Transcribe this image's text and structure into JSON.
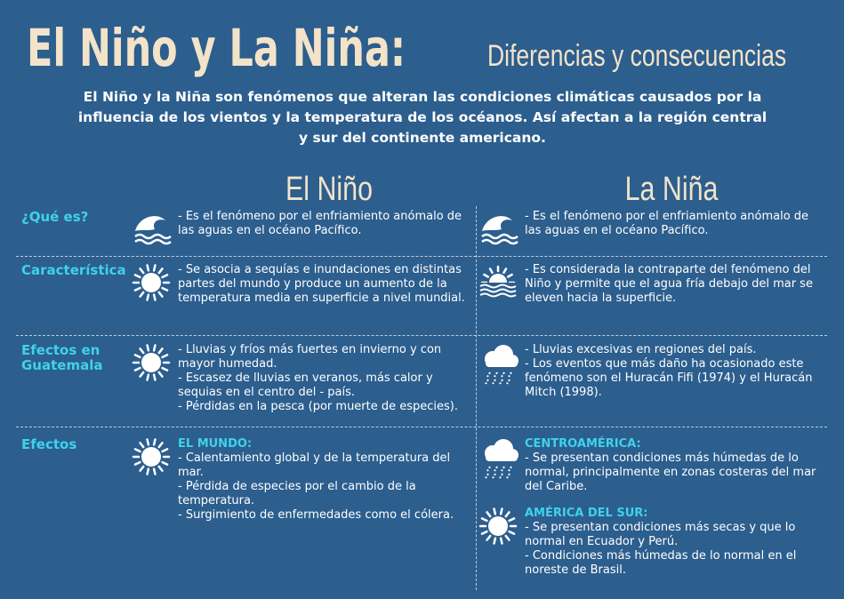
{
  "header": {
    "title": "El Niño y La Niña:",
    "subtitle": "Diferencias y consecuencias",
    "intro": "El Niño y la Niña son fenómenos que alteran las condiciones climáticas causados por la influencia de los vientos y la temperatura de los océanos. Así afectan a la región central y sur del continente americano."
  },
  "columns": [
    "El Niño",
    "La Niña"
  ],
  "rows": [
    {
      "label": "¿Qué es?",
      "cells": [
        [
          {
            "items": [
              "- Es el fenómeno por el enfriamiento anómalo de las aguas en el océano Pacífico."
            ]
          }
        ],
        [
          {
            "items": [
              "- Es el fenómeno por el enfriamiento anómalo de las aguas en el océano Pacífico."
            ]
          }
        ]
      ]
    },
    {
      "label": "Característica",
      "cells": [
        [
          {
            "items": [
              "- Se asocia a sequías e inundaciones en distintas partes del mundo y produce un aumento de la temperatura media en superficie a nivel mundial."
            ]
          }
        ],
        [
          {
            "items": [
              "- Es considerada la contraparte del fenómeno del Niño y permite que el agua fría debajo del mar se eleven hacia la superficie."
            ]
          }
        ]
      ]
    },
    {
      "label": "Efectos en Guatemala",
      "cells": [
        [
          {
            "items": [
              "- Lluvias y fríos más fuertes en invierno y con mayor humedad.",
              "- Escasez de lluvias en veranos, más calor y sequias en el centro del - país.",
              "- Pérdidas en la pesca (por muerte de especies)."
            ]
          }
        ],
        [
          {
            "items": [
              "- Lluvias excesivas en regiones del país.",
              "- Los eventos que más daño ha ocasionado este fenómeno son el Huracán Fifi (1974) y el Huracán Mitch (1998)."
            ]
          }
        ]
      ]
    },
    {
      "label": "Efectos",
      "cells": [
        [
          {
            "heading": "EL MUNDO:",
            "items": [
              "- Calentamiento global y de la temperatura del mar.",
              "- Pérdida de especies por el cambio de la temperatura.",
              "- Surgimiento de enfermedades como el cólera."
            ]
          }
        ],
        [
          {
            "heading": "CENTROAMÉRICA:",
            "items": [
              "- Se presentan condiciones más húmedas de lo normal, principalmente en zonas costeras del mar del Caribe."
            ]
          },
          {
            "heading": "AMÉRICA DEL SUR:",
            "items": [
              "- Se presentan condiciones más secas y que lo normal en Ecuador y Perú.",
              "- Condiciones más húmedas de lo normal en el noreste de Brasil."
            ]
          }
        ]
      ]
    }
  ]
}
